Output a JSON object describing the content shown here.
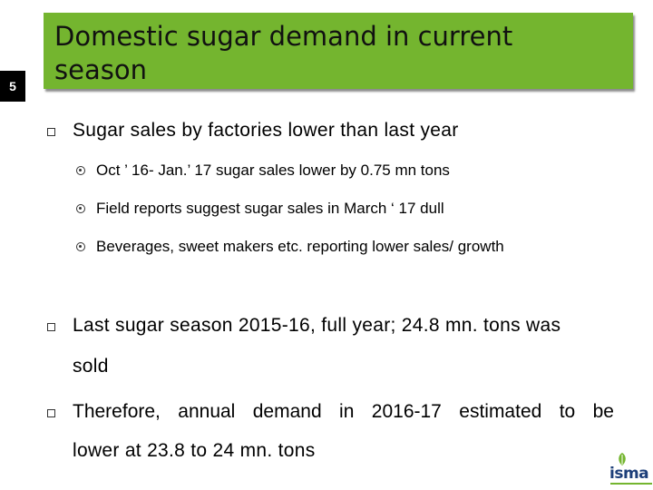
{
  "slide_number": "5",
  "title": {
    "line1": "Domestic sugar demand in current",
    "line2": "season"
  },
  "bullets": [
    {
      "text": "Sugar sales by factories lower than last year",
      "sub": [
        "Oct ’ 16- Jan.’ 17 sugar sales lower by 0.75 mn tons",
        "Field reports suggest sugar sales in March ‘ 17 dull",
        "Beverages, sweet makers etc. reporting lower sales/ growth"
      ]
    },
    {
      "line1": "Last sugar season 2015-16, full year; 24.8 mn. tons was",
      "line2": "sold"
    },
    {
      "line1": "Therefore, annual demand in 2016-17 estimated to be",
      "line2": "lower at 23.8 to 24 mn. tons"
    }
  ],
  "logo": {
    "text": "isma",
    "accent_color": "#74b52f",
    "text_color": "#1d3f7a"
  },
  "colors": {
    "title_bar": "#74b52f",
    "slide_number_bg": "#000000"
  }
}
